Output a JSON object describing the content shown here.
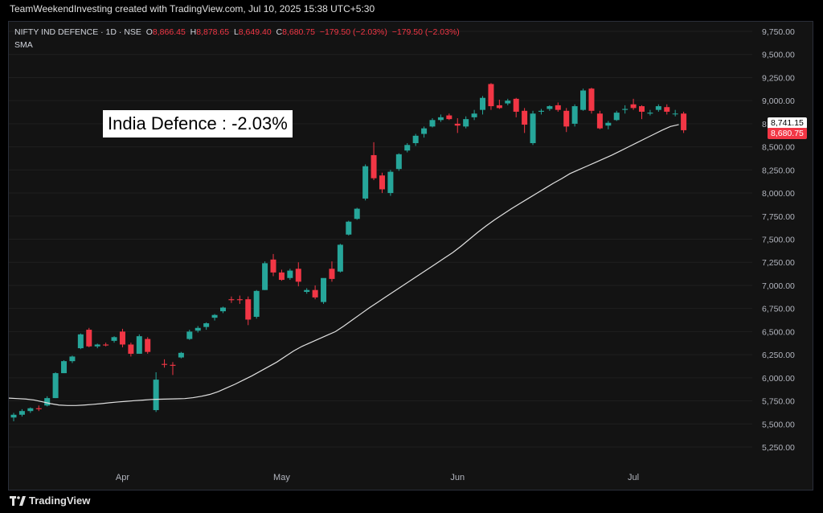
{
  "header": {
    "text": "TeamWeekendInvesting created with TradingView.com, Jul 10, 2025 15:38 UTC+5:30"
  },
  "legend": {
    "symbol": "NIFTY IND DEFENCE · 1D · NSE",
    "o_label": "O",
    "o": "8,866.45",
    "h_label": "H",
    "h": "8,878.65",
    "l_label": "L",
    "l": "8,649.40",
    "c_label": "C",
    "c": "8,680.75",
    "chg": "−179.50 (−2.03%)",
    "chg2": "−179.50 (−2.03%)",
    "indicator": "SMA"
  },
  "annotation": "India Defence : -2.03%",
  "footer": {
    "brand": "TradingView"
  },
  "badges": {
    "sma_value": "8,741.15",
    "close_value": "8,680.75"
  },
  "colors": {
    "up": "#26a69a",
    "down": "#f23645",
    "sma": "#e0e0e0",
    "grid": "#1f1f1f"
  },
  "chart_data": {
    "type": "candlestick",
    "y_ticks": [
      "9,750.00",
      "9,500.00",
      "9,250.00",
      "9,000.00",
      "8,750.00",
      "8,500.00",
      "8,250.00",
      "8,000.00",
      "7,750.00",
      "7,500.00",
      "7,250.00",
      "7,000.00",
      "6,750.00",
      "6,500.00",
      "6,250.00",
      "6,000.00",
      "5,750.00",
      "5,500.00",
      "5,250.00"
    ],
    "y_tick_values": [
      9750,
      9500,
      9250,
      9000,
      8750,
      8500,
      8250,
      8000,
      7750,
      7500,
      7250,
      7000,
      6750,
      6500,
      6250,
      6000,
      5750,
      5500,
      5250
    ],
    "x_labels": [
      {
        "label": "Apr",
        "index": 13
      },
      {
        "label": "May",
        "index": 32
      },
      {
        "label": "Jun",
        "index": 53
      },
      {
        "label": "Jul",
        "index": 74
      }
    ],
    "candles": [
      [
        5570,
        5620,
        5530,
        5600
      ],
      [
        5600,
        5660,
        5580,
        5640
      ],
      [
        5640,
        5680,
        5620,
        5670
      ],
      [
        5670,
        5700,
        5640,
        5660
      ],
      [
        5700,
        5800,
        5690,
        5780
      ],
      [
        5780,
        6060,
        5780,
        6050
      ],
      [
        6050,
        6190,
        6050,
        6180
      ],
      [
        6180,
        6240,
        6160,
        6230
      ],
      [
        6320,
        6480,
        6310,
        6470
      ],
      [
        6520,
        6540,
        6330,
        6340
      ],
      [
        6340,
        6370,
        6320,
        6360
      ],
      [
        6360,
        6380,
        6340,
        6350
      ],
      [
        6400,
        6450,
        6380,
        6440
      ],
      [
        6500,
        6530,
        6330,
        6360
      ],
      [
        6360,
        6380,
        6230,
        6260
      ],
      [
        6260,
        6470,
        6260,
        6450
      ],
      [
        6420,
        6440,
        6260,
        6280
      ],
      [
        5650,
        6060,
        5630,
        5980
      ],
      [
        6150,
        6200,
        6110,
        6140
      ],
      [
        6140,
        6170,
        6030,
        6130
      ],
      [
        6220,
        6280,
        6210,
        6270
      ],
      [
        6420,
        6520,
        6410,
        6500
      ],
      [
        6510,
        6560,
        6490,
        6540
      ],
      [
        6550,
        6600,
        6520,
        6590
      ],
      [
        6650,
        6690,
        6620,
        6680
      ],
      [
        6720,
        6770,
        6700,
        6760
      ],
      [
        6850,
        6880,
        6810,
        6840
      ],
      [
        6850,
        6890,
        6800,
        6840
      ],
      [
        6850,
        6880,
        6570,
        6630
      ],
      [
        6660,
        6950,
        6640,
        6940
      ],
      [
        6950,
        7260,
        6950,
        7240
      ],
      [
        7280,
        7340,
        7100,
        7140
      ],
      [
        7140,
        7170,
        7050,
        7060
      ],
      [
        7080,
        7180,
        7060,
        7160
      ],
      [
        7180,
        7250,
        6990,
        7040
      ],
      [
        6930,
        6970,
        6910,
        6950
      ],
      [
        6950,
        7000,
        6850,
        6870
      ],
      [
        6820,
        7070,
        6800,
        7080
      ],
      [
        7180,
        7260,
        7040,
        7070
      ],
      [
        7150,
        7450,
        7140,
        7440
      ],
      [
        7550,
        7700,
        7540,
        7690
      ],
      [
        7720,
        7840,
        7710,
        7830
      ],
      [
        7940,
        8310,
        7920,
        8290
      ],
      [
        8410,
        8550,
        8140,
        8160
      ],
      [
        8190,
        8220,
        8000,
        8040
      ],
      [
        8000,
        8250,
        7970,
        8230
      ],
      [
        8260,
        8430,
        8240,
        8420
      ],
      [
        8460,
        8540,
        8440,
        8520
      ],
      [
        8540,
        8640,
        8510,
        8620
      ],
      [
        8640,
        8720,
        8600,
        8700
      ],
      [
        8720,
        8810,
        8710,
        8790
      ],
      [
        8790,
        8850,
        8770,
        8820
      ],
      [
        8840,
        8860,
        8790,
        8800
      ],
      [
        8750,
        8810,
        8650,
        8730
      ],
      [
        8720,
        8830,
        8700,
        8800
      ],
      [
        8820,
        8900,
        8790,
        8860
      ],
      [
        8900,
        9050,
        8850,
        9030
      ],
      [
        9180,
        9190,
        8900,
        8940
      ],
      [
        8950,
        9010,
        8910,
        8920
      ],
      [
        8970,
        9020,
        8950,
        9000
      ],
      [
        9020,
        9030,
        8820,
        8880
      ],
      [
        8890,
        8920,
        8650,
        8740
      ],
      [
        8540,
        8890,
        8520,
        8860
      ],
      [
        8880,
        8910,
        8850,
        8890
      ],
      [
        8910,
        8950,
        8890,
        8940
      ],
      [
        8950,
        8980,
        8880,
        8900
      ],
      [
        8890,
        8920,
        8660,
        8720
      ],
      [
        8750,
        8960,
        8720,
        8940
      ],
      [
        8900,
        9130,
        8890,
        9110
      ],
      [
        9130,
        9140,
        8860,
        8890
      ],
      [
        8860,
        8890,
        8690,
        8700
      ],
      [
        8730,
        8780,
        8690,
        8760
      ],
      [
        8790,
        8890,
        8780,
        8870
      ],
      [
        8900,
        8950,
        8860,
        8910
      ],
      [
        8960,
        9020,
        8900,
        8920
      ],
      [
        8940,
        8950,
        8800,
        8880
      ],
      [
        8860,
        8900,
        8840,
        8870
      ],
      [
        8900,
        8960,
        8880,
        8940
      ],
      [
        8930,
        8960,
        8850,
        8880
      ],
      [
        8860,
        8900,
        8830,
        8860
      ],
      [
        8860,
        8880,
        8650,
        8680
      ]
    ],
    "sma": [
      5780,
      5775,
      5770,
      5760,
      5740,
      5720,
      5705,
      5700,
      5700,
      5705,
      5712,
      5720,
      5730,
      5738,
      5745,
      5752,
      5758,
      5765,
      5768,
      5770,
      5772,
      5775,
      5785,
      5800,
      5820,
      5850,
      5890,
      5930,
      5975,
      6020,
      6070,
      6120,
      6170,
      6230,
      6290,
      6340,
      6380,
      6420,
      6460,
      6500,
      6560,
      6625,
      6690,
      6755,
      6815,
      6875,
      6935,
      6995,
      7055,
      7115,
      7175,
      7235,
      7295,
      7355,
      7425,
      7500,
      7575,
      7645,
      7710,
      7770,
      7830,
      7885,
      7940,
      7995,
      8050,
      8105,
      8155,
      8210,
      8250,
      8290,
      8330,
      8370,
      8410,
      8455,
      8500,
      8545,
      8590,
      8635,
      8680,
      8720,
      8741.15
    ],
    "title": "NIFTY IND DEFENCE · 1D · NSE"
  }
}
